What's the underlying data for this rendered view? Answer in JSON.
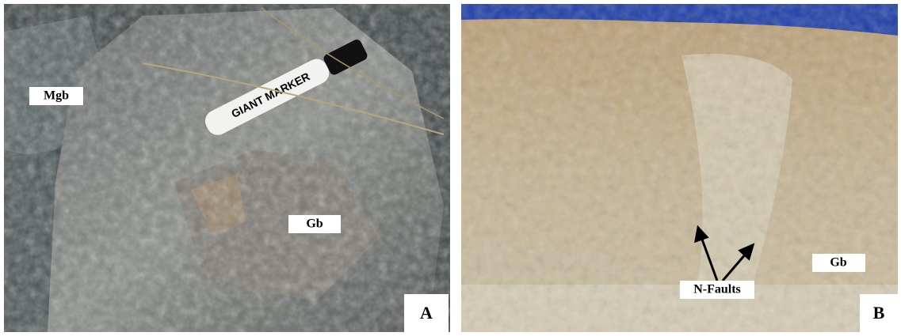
{
  "panels": [
    {
      "label": "A",
      "annotations": [
        "Mgb",
        "Gb"
      ],
      "marker_text": "GIANT MARKER"
    },
    {
      "label": "B",
      "annotations": [
        "Gb",
        "N-Faults"
      ]
    }
  ]
}
